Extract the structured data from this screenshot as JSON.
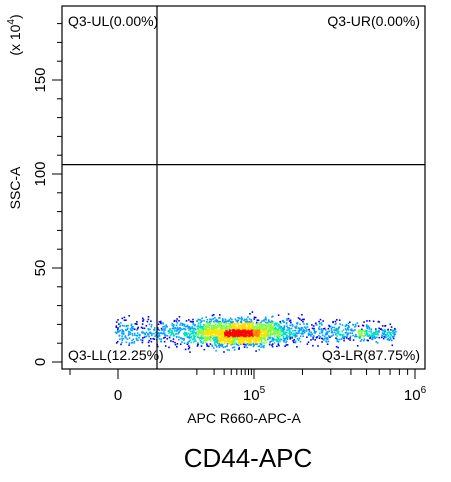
{
  "chart_data": {
    "type": "scatter",
    "style": "density",
    "gate_name": "Q3",
    "x_axis": {
      "label": "APC R660-APC-A",
      "scale": "biexponential",
      "range": [
        -25000,
        1000000
      ],
      "ticks": [
        {
          "value": 0,
          "label": "0"
        },
        {
          "value": 100000,
          "label": "10",
          "exp": "5"
        },
        {
          "value": 1000000,
          "label": "10",
          "exp": "6"
        }
      ]
    },
    "y_axis": {
      "label": "SSC-A",
      "multiplier": "(x 10",
      "multiplier_exp": "4",
      "multiplier_close": ")",
      "range": [
        -3,
        190
      ],
      "ticks": [
        {
          "value": 0,
          "label": "0"
        },
        {
          "value": 50,
          "label": "50"
        },
        {
          "value": 100,
          "label": "100"
        },
        {
          "value": 150,
          "label": "150"
        }
      ]
    },
    "quadrant_gate": {
      "x": 12000,
      "y": 105
    },
    "quadrants": [
      {
        "id": "UL",
        "label": "Q3-UL(0.00%)",
        "percent": 0.0
      },
      {
        "id": "UR",
        "label": "Q3-UR(0.00%)",
        "percent": 0.0
      },
      {
        "id": "LL",
        "label": "Q3-LL(12.25%)",
        "percent": 12.25
      },
      {
        "id": "LR",
        "label": "Q3-LR(87.75%)",
        "percent": 87.75
      }
    ],
    "density_colors": [
      "#0000ff",
      "#00a0ff",
      "#00e0c0",
      "#80ff40",
      "#ffe000",
      "#ff8000",
      "#ff0000"
    ],
    "population": {
      "x_min": -1500,
      "x_max": 760000,
      "peak_x": 60000,
      "y_center": 16,
      "y_spread": 5
    }
  },
  "caption": "CD44-APC"
}
